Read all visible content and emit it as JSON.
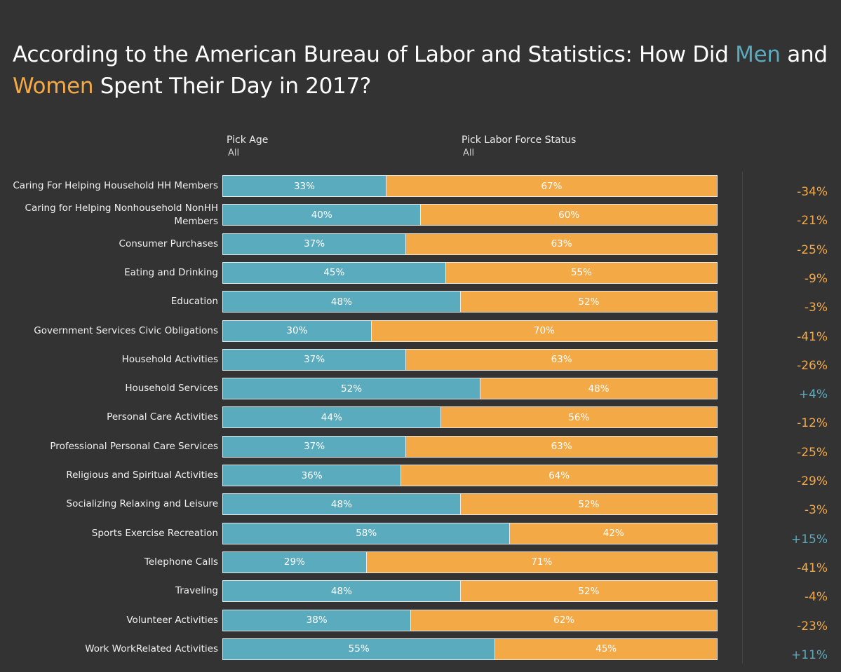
{
  "title": {
    "part1": "According to the American Bureau of Labor and Statistics: How Did ",
    "men_word": "Men",
    "part2": " and ",
    "women_word": "Women",
    "part3": " Spent Their Day in 2017?"
  },
  "filters": {
    "age": {
      "label": "Pick Age",
      "value": "All"
    },
    "labor_force": {
      "label": "Pick Labor Force Status",
      "value": "All"
    }
  },
  "colors": {
    "men": "#5aabbd",
    "women": "#f4a947",
    "background": "#333333"
  },
  "chart_data": {
    "type": "bar",
    "orientation": "horizontal",
    "stacked": "100%",
    "title": "According to the American Bureau of Labor and Statistics: How Did Men and Women Spent Their Day in 2017?",
    "xlabel": "",
    "ylabel": "",
    "xlim": [
      0,
      100
    ],
    "grid": false,
    "categories": [
      "Caring For  Helping Household HH Members",
      "Caring for  Helping Nonhousehold NonHH Members",
      "Consumer Purchases",
      "Eating and Drinking",
      "Education",
      "Government Services  Civic Obligations",
      "Household Activities",
      "Household Services",
      "Personal Care Activities",
      "Professional  Personal Care Services",
      "Religious and Spiritual Activities",
      "Socializing Relaxing and Leisure",
      "Sports Exercise  Recreation",
      "Telephone Calls",
      "Traveling",
      "Volunteer Activities",
      "Work  WorkRelated Activities"
    ],
    "series": [
      {
        "name": "Men",
        "color": "#5aabbd",
        "values": [
          33,
          40,
          37,
          45,
          48,
          30,
          37,
          52,
          44,
          37,
          36,
          48,
          58,
          29,
          48,
          38,
          55
        ]
      },
      {
        "name": "Women",
        "color": "#f4a947",
        "values": [
          67,
          60,
          63,
          55,
          52,
          70,
          63,
          48,
          56,
          63,
          64,
          52,
          42,
          71,
          52,
          62,
          45
        ]
      }
    ],
    "data_labels": {
      "men": [
        "33%",
        "40%",
        "37%",
        "45%",
        "48%",
        "30%",
        "37%",
        "52%",
        "44%",
        "37%",
        "36%",
        "48%",
        "58%",
        "29%",
        "48%",
        "38%",
        "55%"
      ],
      "women": [
        "67%",
        "60%",
        "63%",
        "55%",
        "52%",
        "70%",
        "63%",
        "48%",
        "56%",
        "63%",
        "64%",
        "52%",
        "42%",
        "71%",
        "52%",
        "62%",
        "45%"
      ]
    },
    "difference_labels": [
      "-34%",
      "-21%",
      "-25%",
      "-9%",
      "-3%",
      "-41%",
      "-26%",
      "+4%",
      "-12%",
      "-25%",
      "-29%",
      "-3%",
      "+15%",
      "-41%",
      "-4%",
      "-23%",
      "+11%"
    ],
    "difference_values": [
      -34,
      -21,
      -25,
      -9,
      -3,
      -41,
      -26,
      4,
      -12,
      -25,
      -29,
      -3,
      15,
      -41,
      -4,
      -23,
      11
    ],
    "legend": "none (colors keyed in title)"
  }
}
